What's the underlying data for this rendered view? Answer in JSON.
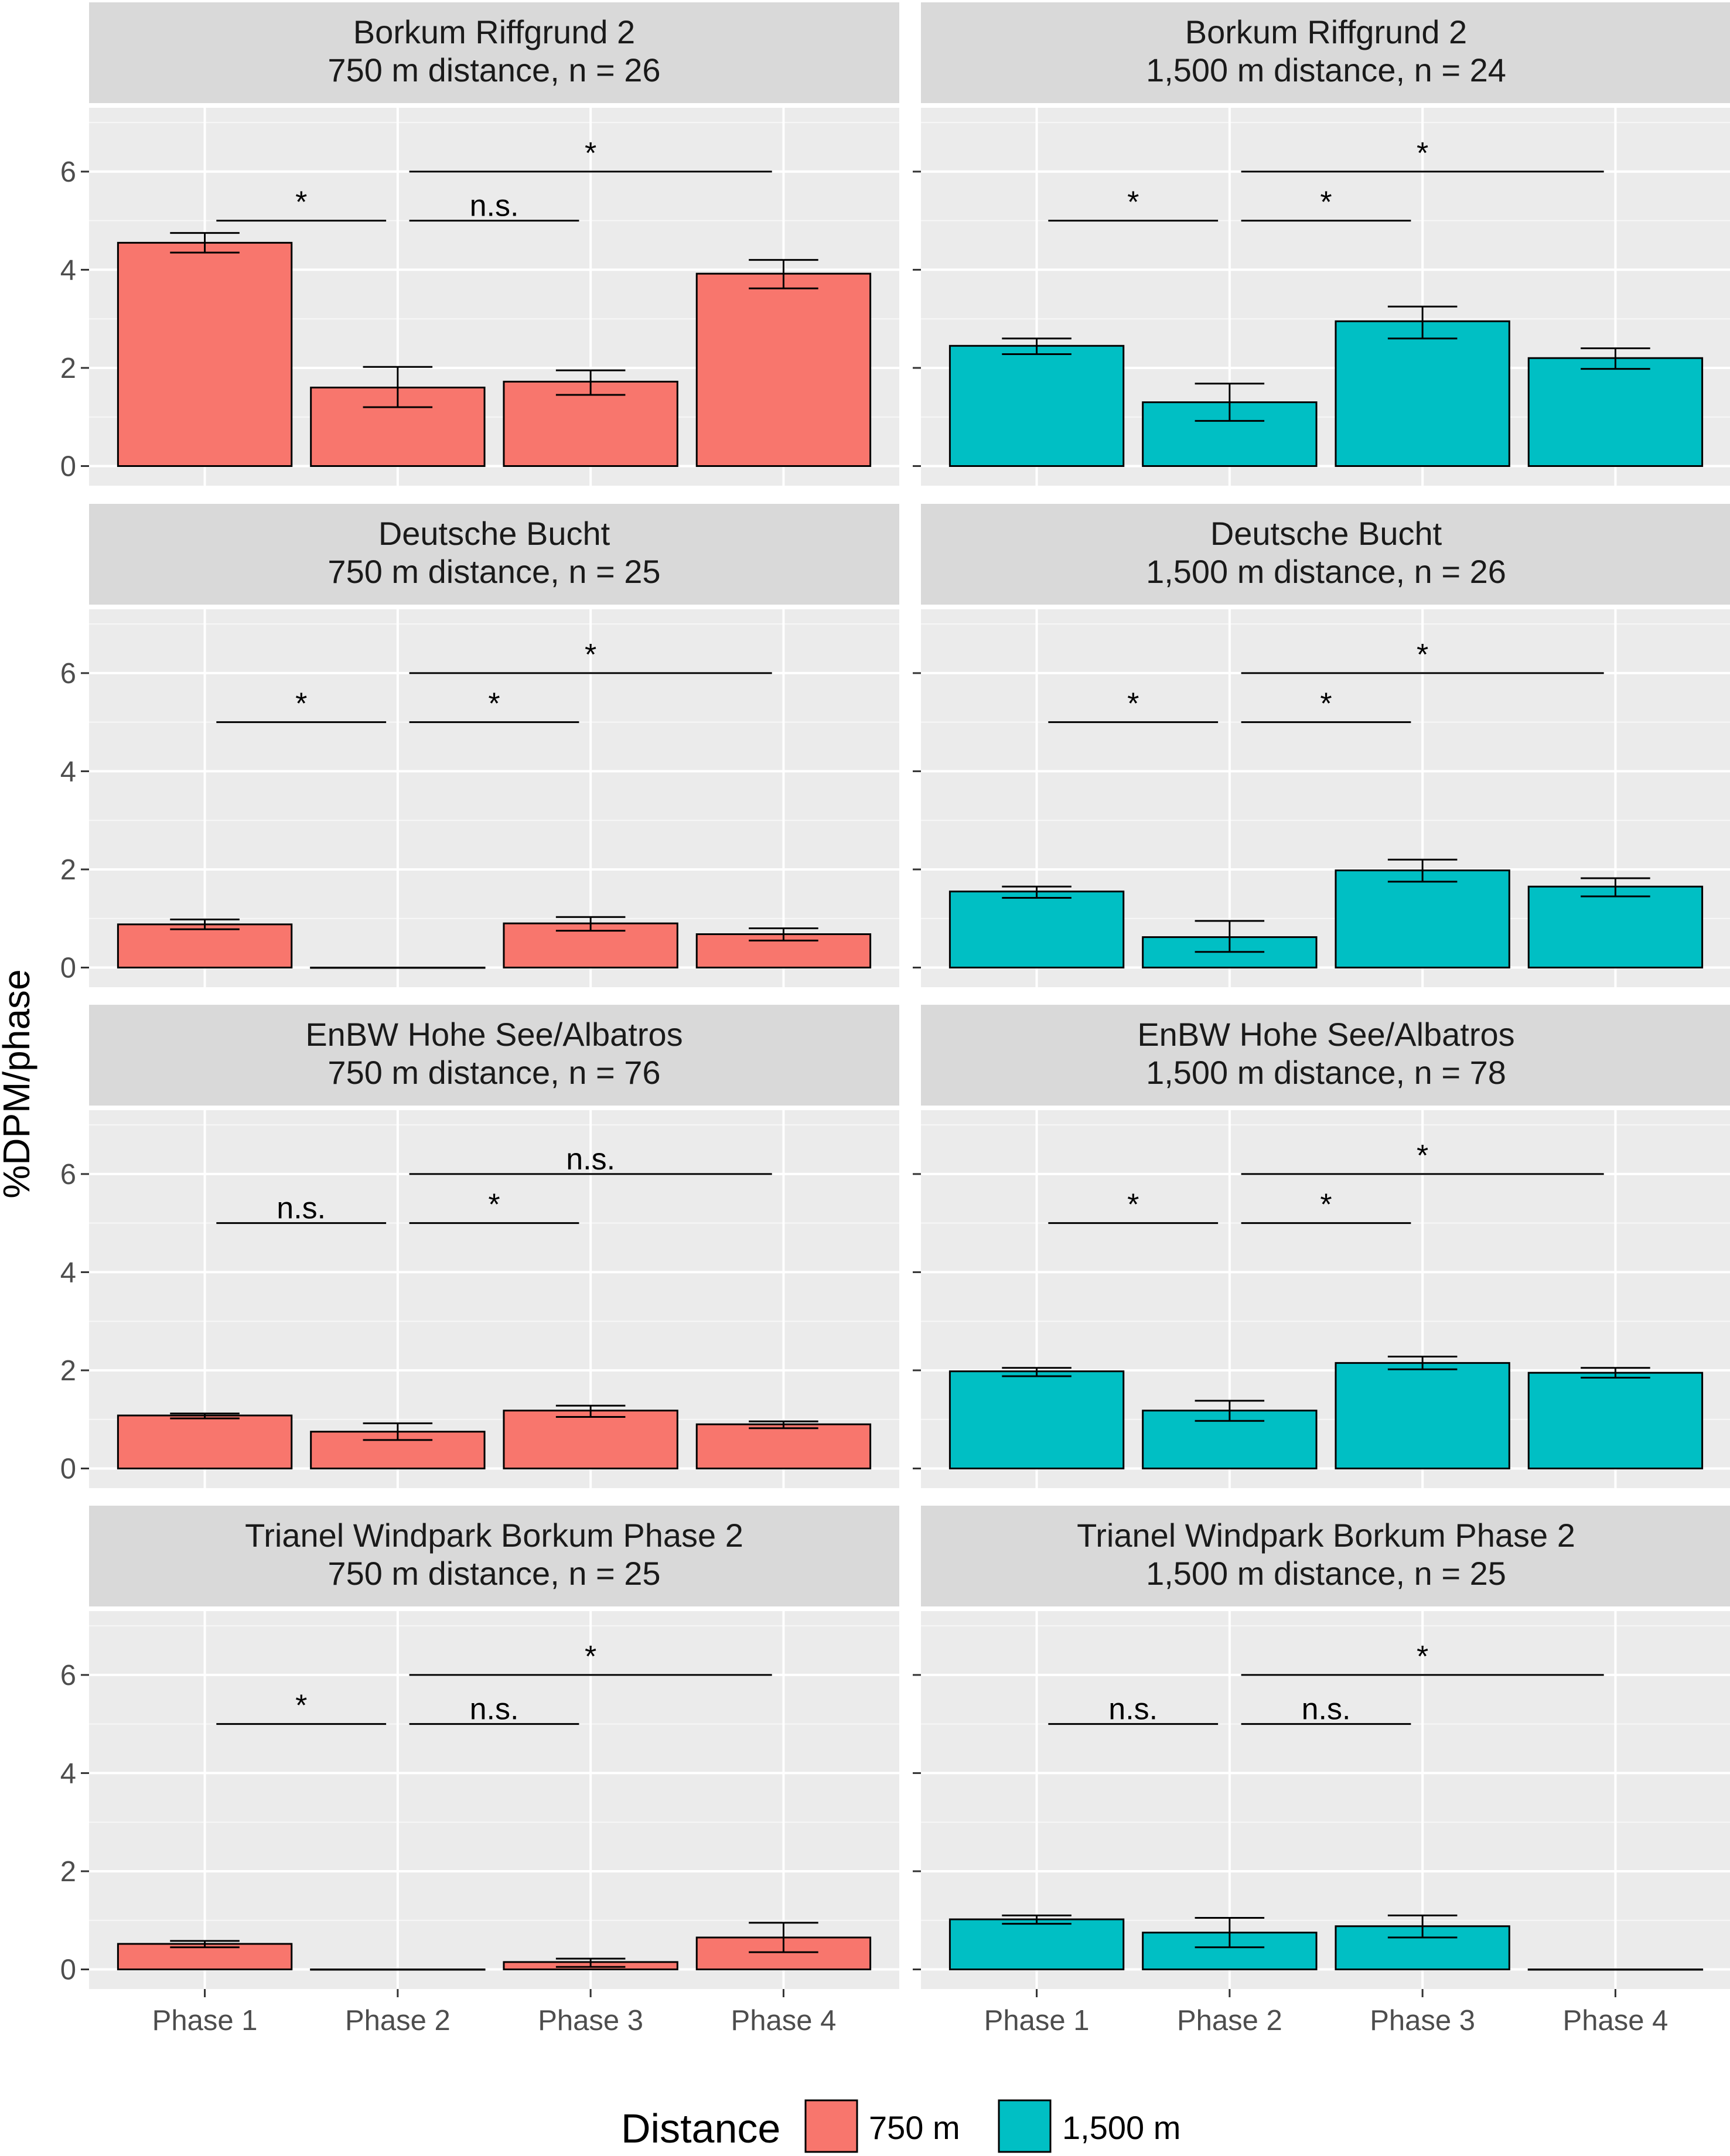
{
  "chart_data": {
    "type": "bar",
    "ylabel": "%DPM/phase",
    "xlabel": "",
    "ylim": [
      -0.4,
      7.3
    ],
    "y_ticks": [
      0,
      2,
      4,
      6
    ],
    "y_tick_labels": [
      "0",
      "2",
      "4",
      "6"
    ],
    "categories": [
      "Phase 1",
      "Phase 2",
      "Phase 3",
      "Phase 4"
    ],
    "legend": {
      "title": "Distance",
      "position": "bottom",
      "items": [
        {
          "label": "750 m",
          "color": "#F8766D"
        },
        {
          "label": "1,500 m",
          "color": "#00BFC4"
        }
      ]
    },
    "panels": [
      {
        "title1": "Borkum Riffgrund 2",
        "title2": "750 m distance, n = 26",
        "row": 0,
        "col": 0,
        "distance": "750 m",
        "values": [
          4.55,
          1.6,
          1.72,
          3.92
        ],
        "err_low": [
          4.35,
          1.2,
          1.45,
          3.62
        ],
        "err_high": [
          4.75,
          2.02,
          1.95,
          4.2
        ],
        "sig": [
          {
            "from": 1,
            "to": 2,
            "y": 5.0,
            "label": "*"
          },
          {
            "from": 2,
            "to": 3,
            "y": 5.0,
            "label": "n.s."
          },
          {
            "from": 2,
            "to": 4,
            "y": 6.0,
            "label": "*"
          }
        ]
      },
      {
        "title1": "Borkum Riffgrund 2",
        "title2": "1,500 m distance, n = 24",
        "row": 0,
        "col": 1,
        "distance": "1,500 m",
        "values": [
          2.45,
          1.3,
          2.95,
          2.2
        ],
        "err_low": [
          2.28,
          0.92,
          2.6,
          1.98
        ],
        "err_high": [
          2.6,
          1.68,
          3.25,
          2.4
        ],
        "sig": [
          {
            "from": 1,
            "to": 2,
            "y": 5.0,
            "label": "*"
          },
          {
            "from": 2,
            "to": 3,
            "y": 5.0,
            "label": "*"
          },
          {
            "from": 2,
            "to": 4,
            "y": 6.0,
            "label": "*"
          }
        ]
      },
      {
        "title1": "Deutsche Bucht",
        "title2": "750 m distance, n = 25",
        "row": 1,
        "col": 0,
        "distance": "750 m",
        "values": [
          0.88,
          0.0,
          0.9,
          0.68
        ],
        "err_low": [
          0.78,
          0.0,
          0.75,
          0.55
        ],
        "err_high": [
          0.98,
          0.0,
          1.03,
          0.8
        ],
        "sig": [
          {
            "from": 1,
            "to": 2,
            "y": 5.0,
            "label": "*"
          },
          {
            "from": 2,
            "to": 3,
            "y": 5.0,
            "label": "*"
          },
          {
            "from": 2,
            "to": 4,
            "y": 6.0,
            "label": "*"
          }
        ]
      },
      {
        "title1": "Deutsche Bucht",
        "title2": "1,500 m distance, n = 26",
        "row": 1,
        "col": 1,
        "distance": "1,500 m",
        "values": [
          1.55,
          0.62,
          1.98,
          1.65
        ],
        "err_low": [
          1.42,
          0.32,
          1.75,
          1.45
        ],
        "err_high": [
          1.65,
          0.95,
          2.2,
          1.82
        ],
        "sig": [
          {
            "from": 1,
            "to": 2,
            "y": 5.0,
            "label": "*"
          },
          {
            "from": 2,
            "to": 3,
            "y": 5.0,
            "label": "*"
          },
          {
            "from": 2,
            "to": 4,
            "y": 6.0,
            "label": "*"
          }
        ]
      },
      {
        "title1": "EnBW Hohe See/Albatros",
        "title2": "750 m distance, n = 76",
        "row": 2,
        "col": 0,
        "distance": "750 m",
        "values": [
          1.08,
          0.75,
          1.18,
          0.9
        ],
        "err_low": [
          1.02,
          0.58,
          1.05,
          0.82
        ],
        "err_high": [
          1.12,
          0.92,
          1.28,
          0.96
        ],
        "sig": [
          {
            "from": 1,
            "to": 2,
            "y": 5.0,
            "label": "n.s."
          },
          {
            "from": 2,
            "to": 3,
            "y": 5.0,
            "label": "*"
          },
          {
            "from": 2,
            "to": 4,
            "y": 6.0,
            "label": "n.s."
          }
        ]
      },
      {
        "title1": "EnBW Hohe See/Albatros",
        "title2": "1,500 m distance, n = 78",
        "row": 2,
        "col": 1,
        "distance": "1,500 m",
        "values": [
          1.98,
          1.18,
          2.15,
          1.95
        ],
        "err_low": [
          1.88,
          0.97,
          2.02,
          1.85
        ],
        "err_high": [
          2.05,
          1.38,
          2.28,
          2.05
        ],
        "sig": [
          {
            "from": 1,
            "to": 2,
            "y": 5.0,
            "label": "*"
          },
          {
            "from": 2,
            "to": 3,
            "y": 5.0,
            "label": "*"
          },
          {
            "from": 2,
            "to": 4,
            "y": 6.0,
            "label": "*"
          }
        ]
      },
      {
        "title1": "Trianel Windpark Borkum Phase 2",
        "title2": "750 m distance, n = 25",
        "row": 3,
        "col": 0,
        "distance": "750 m",
        "values": [
          0.52,
          0.0,
          0.15,
          0.65
        ],
        "err_low": [
          0.45,
          0.0,
          0.05,
          0.35
        ],
        "err_high": [
          0.58,
          0.0,
          0.22,
          0.95
        ],
        "sig": [
          {
            "from": 1,
            "to": 2,
            "y": 5.0,
            "label": "*"
          },
          {
            "from": 2,
            "to": 3,
            "y": 5.0,
            "label": "n.s."
          },
          {
            "from": 2,
            "to": 4,
            "y": 6.0,
            "label": "*"
          }
        ]
      },
      {
        "title1": "Trianel Windpark Borkum Phase 2",
        "title2": "1,500 m distance, n = 25",
        "row": 3,
        "col": 1,
        "distance": "1,500 m",
        "values": [
          1.02,
          0.75,
          0.88,
          0.0
        ],
        "err_low": [
          0.93,
          0.45,
          0.65,
          0.0
        ],
        "err_high": [
          1.1,
          1.05,
          1.1,
          0.0
        ],
        "sig": [
          {
            "from": 1,
            "to": 2,
            "y": 5.0,
            "label": "n.s."
          },
          {
            "from": 2,
            "to": 3,
            "y": 5.0,
            "label": "n.s."
          },
          {
            "from": 2,
            "to": 4,
            "y": 6.0,
            "label": "*"
          }
        ]
      }
    ]
  }
}
